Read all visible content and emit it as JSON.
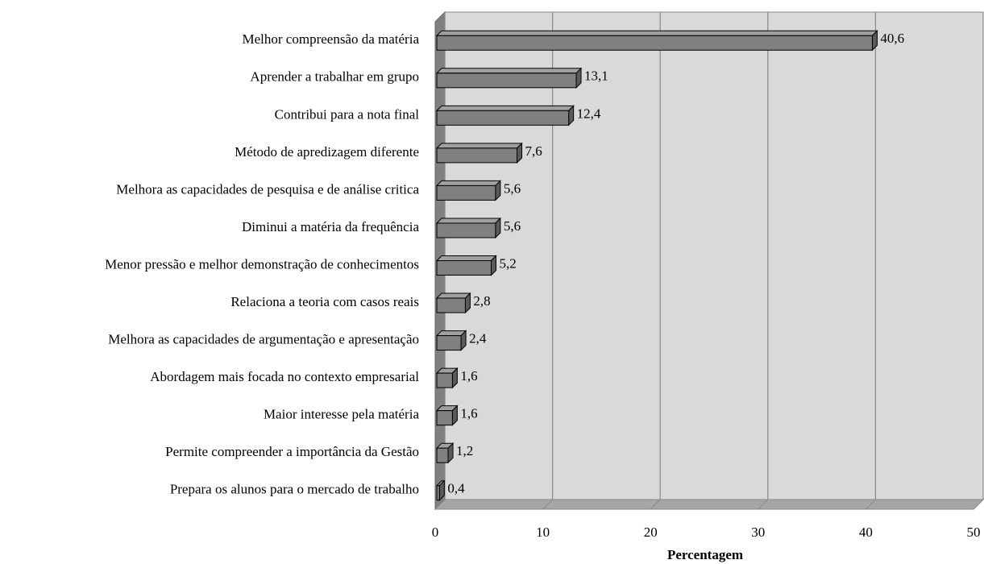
{
  "chart_data": {
    "type": "bar",
    "orientation": "horizontal",
    "categories": [
      "Melhor compreensão da matéria",
      "Aprender a trabalhar em grupo",
      "Contribui para a nota final",
      "Método de apredizagem diferente",
      "Melhora as capacidades de pesquisa e de análise critica",
      "Diminui a matéria da frequência",
      "Menor pressão e melhor demonstração de conhecimentos",
      "Relaciona a teoria com casos reais",
      "Melhora as capacidades de argumentação e apresentação",
      "Abordagem mais focada no contexto empresarial",
      "Maior interesse pela matéria",
      "Permite compreender a importância da Gestão",
      "Prepara os alunos para o mercado de trabalho"
    ],
    "values": [
      40.6,
      13.1,
      12.4,
      7.6,
      5.6,
      5.6,
      5.2,
      2.8,
      2.4,
      1.6,
      1.6,
      1.2,
      0.4
    ],
    "value_labels": [
      "40,6",
      "13,1",
      "12,4",
      "7,6",
      "5,6",
      "5,6",
      "5,2",
      "2,8",
      "2,4",
      "1,6",
      "1,6",
      "1,2",
      "0,4"
    ],
    "color": "#808080",
    "xlabel": "Percentagem",
    "xlim": [
      0,
      50
    ],
    "xticks": [
      0,
      10,
      20,
      30,
      40,
      50
    ],
    "grid": true
  }
}
